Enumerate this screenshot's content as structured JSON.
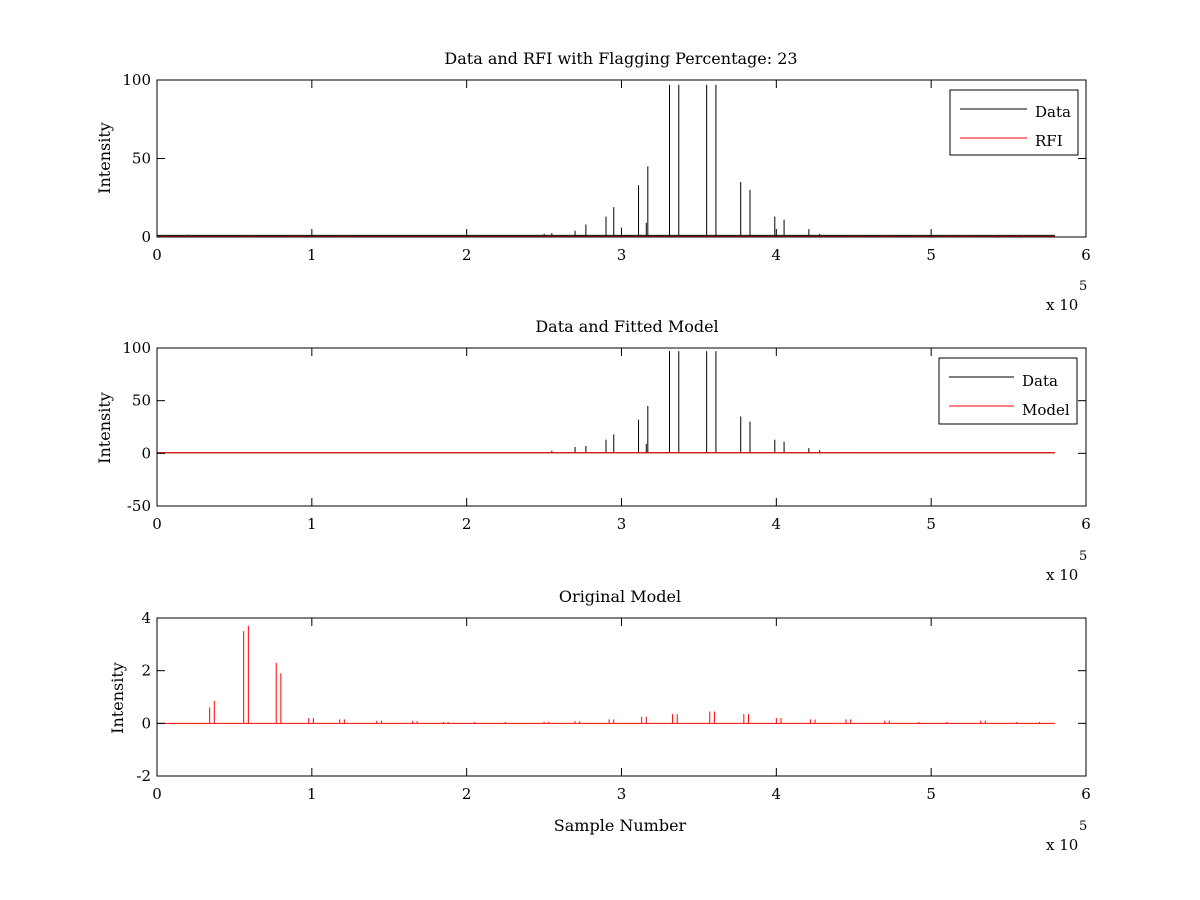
{
  "chart_data": [
    {
      "type": "line",
      "title": "Data and RFI with Flagging Percentage: 23",
      "xlabel": "",
      "ylabel": "Intensity",
      "xlim": [
        0,
        600000
      ],
      "ylim": [
        0,
        100
      ],
      "x_ticks": [
        "0",
        "1",
        "2",
        "3",
        "4",
        "5",
        "6"
      ],
      "y_ticks": [
        "0",
        "50",
        "100"
      ],
      "x_multiplier": "x 10",
      "x_multiplier_exponent": "5",
      "x_end": 580000,
      "legend_position": "top-right",
      "series": [
        {
          "name": "Data",
          "color": "#000000",
          "baseline": 1.0,
          "spikes": [
            [
              20000,
              1.5
            ],
            [
              60000,
              1
            ],
            [
              150000,
              1
            ],
            [
              200000,
              1
            ],
            [
              250000,
              2
            ],
            [
              255000,
              2.5
            ],
            [
              270000,
              4
            ],
            [
              277000,
              8
            ],
            [
              290000,
              13
            ],
            [
              295000,
              19
            ],
            [
              300000,
              6
            ],
            [
              311000,
              33
            ],
            [
              316000,
              9
            ],
            [
              317000,
              45
            ],
            [
              331000,
              97
            ],
            [
              337000,
              97
            ],
            [
              355000,
              97
            ],
            [
              361000,
              97
            ],
            [
              377000,
              35
            ],
            [
              383000,
              30
            ],
            [
              399000,
              13
            ],
            [
              405000,
              11
            ],
            [
              421000,
              5
            ],
            [
              428000,
              2
            ],
            [
              445000,
              1
            ],
            [
              450000,
              1
            ]
          ]
        },
        {
          "name": "RFI",
          "color": "#ff0000",
          "baseline": 0.3,
          "spikes": [
            [
              60000,
              0.8
            ],
            [
              90000,
              0.8
            ],
            [
              120000,
              0.8
            ],
            [
              450000,
              0.8
            ],
            [
              470000,
              1
            ],
            [
              490000,
              1
            ],
            [
              500000,
              1
            ],
            [
              510000,
              1
            ],
            [
              520000,
              1
            ],
            [
              525000,
              1
            ],
            [
              530000,
              1
            ],
            [
              535000,
              1
            ],
            [
              540000,
              1.2
            ],
            [
              545000,
              1
            ],
            [
              550000,
              1
            ],
            [
              555000,
              1.2
            ],
            [
              560000,
              1
            ],
            [
              565000,
              1
            ],
            [
              570000,
              1
            ],
            [
              575000,
              1
            ]
          ]
        }
      ]
    },
    {
      "type": "line",
      "title": "Data and Fitted Model",
      "xlabel": "",
      "ylabel": "Intensity",
      "xlim": [
        0,
        600000
      ],
      "ylim": [
        -50,
        100
      ],
      "x_ticks": [
        "0",
        "1",
        "2",
        "3",
        "4",
        "5",
        "6"
      ],
      "y_ticks": [
        "-50",
        "0",
        "50",
        "100"
      ],
      "x_multiplier": "x 10",
      "x_multiplier_exponent": "5",
      "x_end": 580000,
      "legend_position": "top-right",
      "series": [
        {
          "name": "Data",
          "color": "#000000",
          "baseline": 0.5,
          "spikes": [
            [
              255000,
              2.5
            ],
            [
              270000,
              6
            ],
            [
              277000,
              7
            ],
            [
              290000,
              13
            ],
            [
              295000,
              18
            ],
            [
              311000,
              32
            ],
            [
              316000,
              9
            ],
            [
              317000,
              45
            ],
            [
              331000,
              97
            ],
            [
              337000,
              97
            ],
            [
              355000,
              97
            ],
            [
              361000,
              97
            ],
            [
              377000,
              35
            ],
            [
              383000,
              30
            ],
            [
              399000,
              13
            ],
            [
              405000,
              11
            ],
            [
              421000,
              5
            ],
            [
              428000,
              3
            ],
            [
              445000,
              1
            ],
            [
              450000,
              1
            ]
          ]
        },
        {
          "name": "Model",
          "color": "#ff0000",
          "baseline": 0.5,
          "spikes": []
        }
      ]
    },
    {
      "type": "line",
      "title": "Original Model",
      "xlabel": "Sample Number",
      "ylabel": "Intensity",
      "xlim": [
        0,
        600000
      ],
      "ylim": [
        -2,
        4
      ],
      "x_ticks": [
        "0",
        "1",
        "2",
        "3",
        "4",
        "5",
        "6"
      ],
      "y_ticks": [
        "-2",
        "0",
        "2",
        "4"
      ],
      "x_multiplier": "x 10",
      "x_multiplier_exponent": "5",
      "x_end": 580000,
      "series": [
        {
          "name": "",
          "color": "#ff0000",
          "baseline": 0,
          "spikes": [
            [
              34000,
              0.6
            ],
            [
              37000,
              0.85
            ],
            [
              56000,
              3.5
            ],
            [
              59000,
              3.7
            ],
            [
              77000,
              2.3
            ],
            [
              80000,
              1.9
            ],
            [
              98000,
              0.2
            ],
            [
              101000,
              0.2
            ],
            [
              118000,
              0.15
            ],
            [
              121000,
              0.15
            ],
            [
              142000,
              0.1
            ],
            [
              145000,
              0.1
            ],
            [
              165000,
              0.08
            ],
            [
              168000,
              0.08
            ],
            [
              185000,
              0.05
            ],
            [
              188000,
              0.05
            ],
            [
              205000,
              0.05
            ],
            [
              225000,
              0.05
            ],
            [
              250000,
              0.06
            ],
            [
              253000,
              0.06
            ],
            [
              270000,
              0.08
            ],
            [
              273000,
              0.08
            ],
            [
              292000,
              0.15
            ],
            [
              295000,
              0.15
            ],
            [
              313000,
              0.25
            ],
            [
              316000,
              0.25
            ],
            [
              333000,
              0.35
            ],
            [
              336000,
              0.35
            ],
            [
              357000,
              0.45
            ],
            [
              360000,
              0.45
            ],
            [
              379000,
              0.35
            ],
            [
              382000,
              0.35
            ],
            [
              400000,
              0.2
            ],
            [
              403000,
              0.2
            ],
            [
              422000,
              0.15
            ],
            [
              425000,
              0.15
            ],
            [
              445000,
              0.15
            ],
            [
              448000,
              0.15
            ],
            [
              470000,
              0.1
            ],
            [
              473000,
              0.1
            ],
            [
              492000,
              0.05
            ],
            [
              510000,
              0.05
            ],
            [
              532000,
              0.1
            ],
            [
              535000,
              0.1
            ],
            [
              555000,
              0.05
            ],
            [
              570000,
              0.05
            ]
          ]
        }
      ]
    }
  ]
}
